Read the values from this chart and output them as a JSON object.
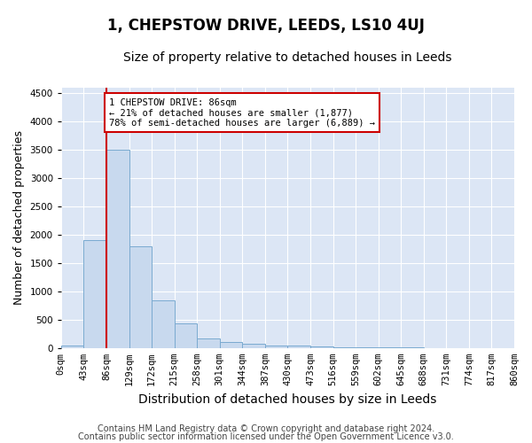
{
  "title": "1, CHEPSTOW DRIVE, LEEDS, LS10 4UJ",
  "subtitle": "Size of property relative to detached houses in Leeds",
  "xlabel": "Distribution of detached houses by size in Leeds",
  "ylabel": "Number of detached properties",
  "bin_labels": [
    "0sqm",
    "43sqm",
    "86sqm",
    "129sqm",
    "172sqm",
    "215sqm",
    "258sqm",
    "301sqm",
    "344sqm",
    "387sqm",
    "430sqm",
    "473sqm",
    "516sqm",
    "559sqm",
    "602sqm",
    "645sqm",
    "688sqm",
    "731sqm",
    "774sqm",
    "817sqm",
    "860sqm"
  ],
  "bar_values": [
    50,
    1900,
    3500,
    1800,
    850,
    430,
    170,
    100,
    70,
    50,
    40,
    25,
    15,
    10,
    8,
    5,
    0,
    0,
    0,
    0
  ],
  "bar_color": "#c8d9ee",
  "bar_edge_color": "#7aaad0",
  "vline_color": "#cc0000",
  "annotation_text": "1 CHEPSTOW DRIVE: 86sqm\n← 21% of detached houses are smaller (1,877)\n78% of semi-detached houses are larger (6,889) →",
  "annotation_box_color": "#ffffff",
  "annotation_box_edge": "#cc0000",
  "ylim": [
    0,
    4600
  ],
  "yticks": [
    0,
    500,
    1000,
    1500,
    2000,
    2500,
    3000,
    3500,
    4000,
    4500
  ],
  "plot_bg_color": "#dce6f5",
  "fig_bg_color": "#ffffff",
  "title_fontsize": 12,
  "subtitle_fontsize": 10,
  "ylabel_fontsize": 9,
  "xlabel_fontsize": 10,
  "tick_fontsize": 7.5,
  "footer_fontsize": 7,
  "footer1": "Contains HM Land Registry data © Crown copyright and database right 2024.",
  "footer2": "Contains public sector information licensed under the Open Government Licence v3.0."
}
